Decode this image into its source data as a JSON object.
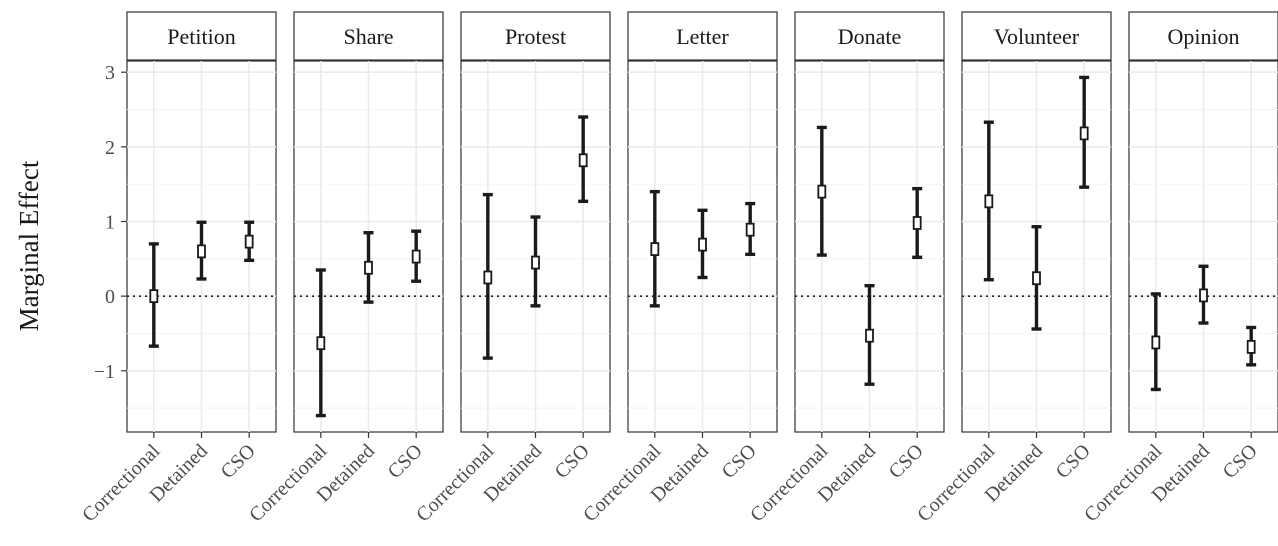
{
  "chart_data": {
    "type": "errorbar",
    "ylabel": "Marginal Effect",
    "xlabel": "",
    "ylim": [
      -1.82,
      3.15
    ],
    "yticks": [
      -1,
      0,
      1,
      2,
      3
    ],
    "ytick_labels": [
      "−1",
      "0",
      "1",
      "2",
      "3"
    ],
    "reference_line": 0,
    "categories": [
      "Correctional",
      "Detained",
      "CSO"
    ],
    "panels": [
      {
        "name": "Petition",
        "estimates": [
          0.0,
          0.6,
          0.73
        ],
        "lower": [
          -0.67,
          0.23,
          0.48
        ],
        "upper": [
          0.7,
          0.99,
          0.99
        ]
      },
      {
        "name": "Share",
        "estimates": [
          -0.63,
          0.38,
          0.53
        ],
        "lower": [
          -1.6,
          -0.08,
          0.2
        ],
        "upper": [
          0.35,
          0.85,
          0.87
        ]
      },
      {
        "name": "Protest",
        "estimates": [
          0.25,
          0.45,
          1.82
        ],
        "lower": [
          -0.83,
          -0.13,
          1.27
        ],
        "upper": [
          1.36,
          1.06,
          2.4
        ]
      },
      {
        "name": "Letter",
        "estimates": [
          0.63,
          0.69,
          0.89
        ],
        "lower": [
          -0.13,
          0.25,
          0.56
        ],
        "upper": [
          1.4,
          1.15,
          1.24
        ]
      },
      {
        "name": "Donate",
        "estimates": [
          1.4,
          -0.53,
          0.98
        ],
        "lower": [
          0.55,
          -1.18,
          0.52
        ],
        "upper": [
          2.26,
          0.14,
          1.44
        ]
      },
      {
        "name": "Volunteer",
        "estimates": [
          1.27,
          0.24,
          2.18
        ],
        "lower": [
          0.22,
          -0.44,
          1.46
        ],
        "upper": [
          2.33,
          0.93,
          2.93
        ]
      },
      {
        "name": "Opinion",
        "estimates": [
          -0.62,
          0.01,
          -0.68
        ],
        "lower": [
          -1.25,
          -0.36,
          -0.92
        ],
        "upper": [
          0.03,
          0.4,
          -0.42
        ]
      }
    ],
    "grid": true,
    "legend": "none"
  }
}
